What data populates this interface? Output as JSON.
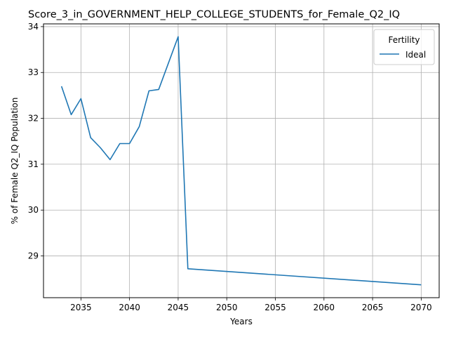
{
  "chart_data": {
    "type": "line",
    "title": "Score_3_in_GOVERNMENT_HELP_COLLEGE_STUDENTS_for_Female_Q2_IQ",
    "xlabel": "Years",
    "ylabel": "% of Female Q2_IQ Population",
    "xlim": [
      2031.15,
      2071.85
    ],
    "ylim": [
      28.09,
      34.06
    ],
    "xticks": [
      2035,
      2040,
      2045,
      2050,
      2055,
      2060,
      2065,
      2070
    ],
    "yticks": [
      29,
      30,
      31,
      32,
      33,
      34
    ],
    "grid": true,
    "legend": {
      "title": "Fertility",
      "placement": "top-right"
    },
    "series": [
      {
        "name": "Ideal",
        "color": "#1f77b4",
        "x": [
          2033,
          2034,
          2035,
          2036,
          2037,
          2038,
          2039,
          2040,
          2041,
          2042,
          2043,
          2045,
          2046,
          2070
        ],
        "y": [
          32.7,
          32.08,
          32.43,
          31.58,
          31.36,
          31.1,
          31.45,
          31.45,
          31.82,
          32.6,
          32.63,
          33.78,
          28.72,
          28.37
        ]
      }
    ]
  }
}
